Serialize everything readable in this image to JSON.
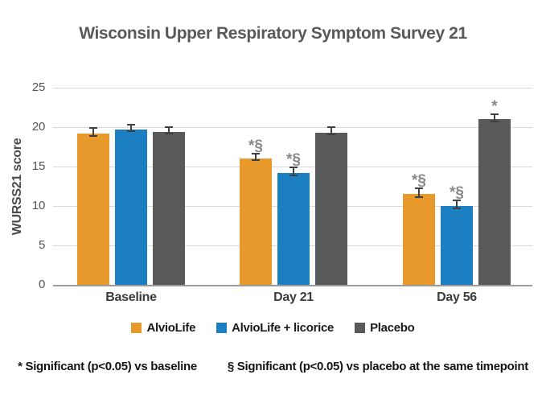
{
  "title": "Wisconsin Upper Respiratory Symptom Survey 21",
  "footnotes": [
    "* Significant (p<0.05) vs baseline",
    "§ Significant (p<0.05) vs placebo at the same timepoint"
  ],
  "chart_data": {
    "type": "bar",
    "title": "Wisconsin Upper Respiratory Symptom Survey 21",
    "xlabel": "",
    "ylabel": "WURSS21 score",
    "ylim": [
      0,
      25
    ],
    "yticks": [
      0,
      5,
      10,
      15,
      20,
      25
    ],
    "grid": "horizontal",
    "legend_position": "bottom",
    "categories": [
      "Baseline",
      "Day 21",
      "Day 56"
    ],
    "series": [
      {
        "name": "AlvioLife",
        "color": "#E8992B",
        "values": [
          19.2,
          16.0,
          11.5
        ],
        "errors": [
          0.4,
          0.3,
          0.45
        ],
        "annotations": [
          "",
          "*§",
          "*§"
        ]
      },
      {
        "name": "AlvioLife + licorice",
        "color": "#1C7FC2",
        "values": [
          19.7,
          14.2,
          10.0
        ],
        "errors": [
          0.35,
          0.4,
          0.4
        ],
        "annotations": [
          "",
          "*§",
          "*§"
        ]
      },
      {
        "name": "Placebo",
        "color": "#58595B",
        "values": [
          19.4,
          19.3,
          21.0
        ],
        "errors": [
          0.3,
          0.35,
          0.35
        ],
        "annotations": [
          "",
          "",
          "*"
        ]
      }
    ],
    "annotation_color": "#85878a",
    "error_bar_color": "#3f4042"
  }
}
